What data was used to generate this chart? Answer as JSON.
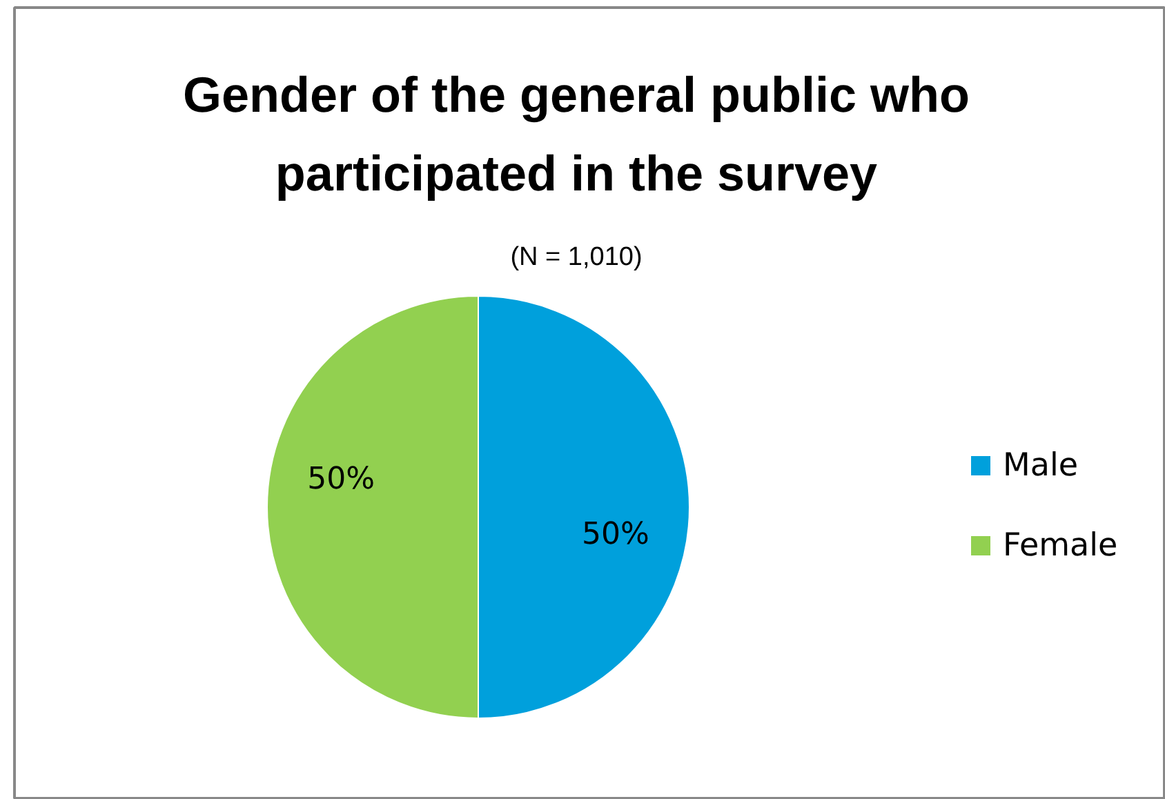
{
  "chart_data": {
    "type": "pie",
    "title": "Gender of the general public who participated in the survey",
    "subtitle": "(N = 1,010)",
    "categories": [
      "Male",
      "Female"
    ],
    "values": [
      50,
      50
    ],
    "colors": [
      "#00a0dc",
      "#92d050"
    ],
    "value_labels": [
      "50%",
      "50%"
    ],
    "legend": "right"
  }
}
